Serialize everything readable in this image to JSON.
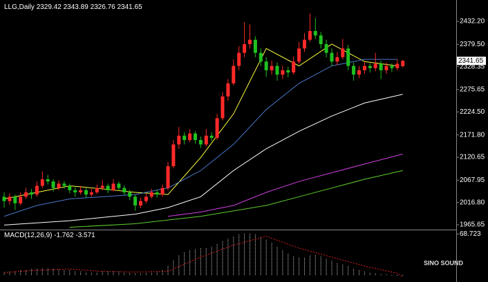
{
  "chart_data": [
    {
      "type": "candlestick",
      "symbol": "LLG,Daily",
      "up_color": "#ff2a2a",
      "down_color": "#20c020",
      "ylim": [
        1954.6,
        2481.2
      ],
      "yticks": [
        {
          "value": 2432.2,
          "label": "2432.20"
        },
        {
          "value": 2379.5,
          "label": "2379.50"
        },
        2328.35,
        2275.65,
        {
          "value": 2224.5,
          "label": "2224.50"
        },
        {
          "value": 2171.8,
          "label": "2171.80"
        },
        2120.65,
        2067.95,
        {
          "value": 2016.8,
          "label": "2016.80"
        },
        1965.65
      ],
      "candles": [
        [
          2030,
          2040,
          2005,
          2020
        ],
        [
          2020,
          2038,
          2012,
          2030
        ],
        [
          2030,
          2035,
          2000,
          2015
        ],
        [
          2015,
          2040,
          2010,
          2030
        ],
        [
          2030,
          2050,
          2025,
          2040
        ],
        [
          2040,
          2048,
          2025,
          2035
        ],
        [
          2035,
          2065,
          2030,
          2055
        ],
        [
          2055,
          2088,
          2050,
          2070
        ],
        [
          2070,
          2080,
          2058,
          2065
        ],
        [
          2065,
          2070,
          2042,
          2050
        ],
        [
          2050,
          2068,
          2045,
          2060
        ],
        [
          2060,
          2066,
          2048,
          2055
        ],
        [
          2055,
          2060,
          2038,
          2045
        ],
        [
          2045,
          2052,
          2030,
          2040
        ],
        [
          2040,
          2055,
          2035,
          2045
        ],
        [
          2045,
          2050,
          2028,
          2035
        ],
        [
          2035,
          2048,
          2030,
          2040
        ],
        [
          2040,
          2058,
          2036,
          2050
        ],
        [
          2050,
          2068,
          2045,
          2055
        ],
        [
          2055,
          2060,
          2038,
          2045
        ],
        [
          2045,
          2070,
          2042,
          2060
        ],
        [
          2060,
          2065,
          2044,
          2050
        ],
        [
          2050,
          2056,
          2034,
          2040
        ],
        [
          2040,
          2046,
          2022,
          2030
        ],
        [
          2030,
          2035,
          1998,
          2010
        ],
        [
          2010,
          2028,
          2004,
          2020
        ],
        [
          2020,
          2036,
          2015,
          2030
        ],
        [
          2030,
          2048,
          2026,
          2040
        ],
        [
          2040,
          2046,
          2028,
          2035
        ],
        [
          2035,
          2058,
          2030,
          2050
        ],
        [
          2050,
          2110,
          2045,
          2100
        ],
        [
          2100,
          2160,
          2095,
          2150
        ],
        [
          2150,
          2190,
          2140,
          2170
        ],
        [
          2170,
          2178,
          2150,
          2160
        ],
        [
          2160,
          2185,
          2155,
          2175
        ],
        [
          2175,
          2180,
          2152,
          2160
        ],
        [
          2160,
          2168,
          2142,
          2150
        ],
        [
          2150,
          2185,
          2145,
          2170
        ],
        [
          2170,
          2178,
          2158,
          2165
        ],
        [
          2165,
          2220,
          2160,
          2210
        ],
        [
          2210,
          2270,
          2205,
          2260
        ],
        [
          2260,
          2300,
          2250,
          2290
        ],
        [
          2290,
          2345,
          2285,
          2330
        ],
        [
          2330,
          2375,
          2320,
          2360
        ],
        [
          2360,
          2430,
          2350,
          2380
        ],
        [
          2380,
          2425,
          2370,
          2390
        ],
        [
          2390,
          2398,
          2350,
          2360
        ],
        [
          2360,
          2370,
          2330,
          2340
        ],
        [
          2340,
          2350,
          2305,
          2320
        ],
        [
          2320,
          2342,
          2310,
          2330
        ],
        [
          2330,
          2338,
          2296,
          2310
        ],
        [
          2310,
          2330,
          2300,
          2320
        ],
        [
          2320,
          2328,
          2304,
          2315
        ],
        [
          2315,
          2352,
          2310,
          2340
        ],
        [
          2340,
          2385,
          2335,
          2370
        ],
        [
          2370,
          2405,
          2362,
          2390
        ],
        [
          2390,
          2450,
          2385,
          2410
        ],
        [
          2410,
          2440,
          2392,
          2400
        ],
        [
          2400,
          2408,
          2370,
          2380
        ],
        [
          2380,
          2390,
          2350,
          2360
        ],
        [
          2360,
          2370,
          2330,
          2340
        ],
        [
          2340,
          2362,
          2332,
          2350
        ],
        [
          2350,
          2392,
          2345,
          2370
        ],
        [
          2370,
          2378,
          2320,
          2330
        ],
        [
          2330,
          2338,
          2296,
          2310
        ],
        [
          2310,
          2330,
          2302,
          2320
        ],
        [
          2320,
          2340,
          2312,
          2330
        ],
        [
          2330,
          2336,
          2315,
          2325
        ],
        [
          2325,
          2360,
          2318,
          2335
        ],
        [
          2335,
          2342,
          2300,
          2320
        ],
        [
          2320,
          2338,
          2312,
          2330
        ],
        [
          2330,
          2336,
          2316,
          2325
        ],
        [
          2325,
          2345,
          2320,
          2335
        ],
        [
          2329.42,
          2343.89,
          2326.76,
          2341.65
        ]
      ],
      "series": [
        {
          "color": "#ffff40",
          "x": [
            0,
            6,
            12,
            18,
            24,
            30,
            36,
            42,
            48,
            54,
            60,
            66,
            72
          ],
          "values": [
            2025,
            2040,
            2055,
            2048,
            2040,
            2035,
            2120,
            2220,
            2370,
            2330,
            2380,
            2340,
            2330
          ]
        },
        {
          "color": "#4a78c8",
          "x": [
            0,
            6,
            12,
            18,
            24,
            30,
            36,
            42,
            48,
            54,
            60,
            66,
            72
          ],
          "values": [
            1985,
            2010,
            2025,
            2030,
            2035,
            2050,
            2090,
            2150,
            2230,
            2290,
            2330,
            2345,
            2345
          ]
        },
        {
          "color": "#ffffff",
          "x": [
            0,
            12,
            24,
            30,
            36,
            42,
            48,
            54,
            60,
            66,
            73
          ],
          "values": [
            1965,
            1975,
            1990,
            2005,
            2030,
            2090,
            2140,
            2180,
            2215,
            2245,
            2265
          ]
        },
        {
          "color": "#d040e0",
          "x": [
            30,
            36,
            42,
            48,
            54,
            60,
            66,
            73
          ],
          "values": [
            1985,
            1995,
            2010,
            2040,
            2065,
            2085,
            2105,
            2128
          ]
        },
        {
          "color": "#60d030",
          "x": [
            12,
            24,
            36,
            48,
            54,
            60,
            66,
            73
          ],
          "values": [
            1960,
            1968,
            1985,
            2010,
            2030,
            2050,
            2070,
            2090
          ]
        }
      ]
    },
    {
      "type": "macd",
      "label": "MACD(12,26,9)",
      "histogram_color": "#c8c8c8",
      "ylim": [
        -6,
        75
      ],
      "yticks": [
        68.723
      ],
      "histogram": [
        5,
        6,
        7,
        8,
        9,
        10,
        11,
        12,
        12,
        11,
        10,
        9,
        8,
        7,
        6,
        5,
        5,
        5,
        6,
        6,
        7,
        6,
        5,
        4,
        3,
        3,
        4,
        5,
        6,
        8,
        15,
        25,
        33,
        38,
        42,
        44,
        45,
        46,
        48,
        52,
        57,
        61,
        65,
        68,
        70,
        70,
        68,
        65,
        60,
        54,
        48,
        42,
        36,
        32,
        30,
        30,
        33,
        34,
        32,
        28,
        24,
        20,
        18,
        15,
        11,
        8,
        6,
        4,
        3,
        2,
        1,
        -1,
        -2,
        -1.762
      ],
      "signal": {
        "color": "#e02020",
        "x": [
          0,
          6,
          12,
          18,
          24,
          30,
          36,
          42,
          48,
          54,
          60,
          66,
          72,
          73
        ],
        "values": [
          4,
          8,
          10,
          6,
          5,
          6,
          30,
          50,
          65,
          45,
          30,
          15,
          3,
          -3.571
        ]
      }
    }
  ],
  "logo": "SINO SOUND"
}
